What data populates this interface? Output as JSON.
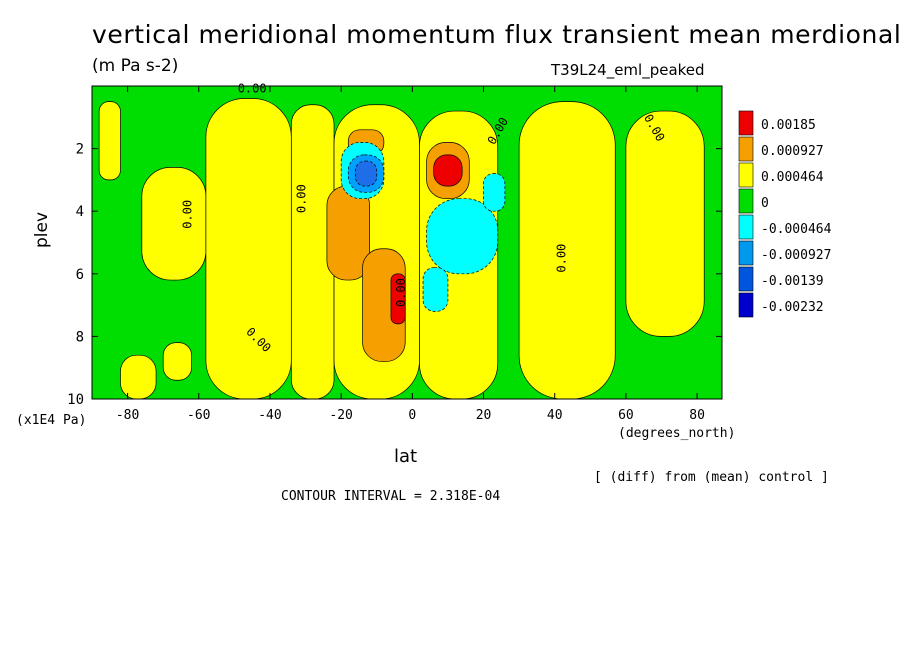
{
  "header": {
    "title": "vertical meridional momentum flux transient mean merdional",
    "units": "(m Pa s-2)",
    "run_label": "T39L24_eml_peaked"
  },
  "footer": {
    "y_unit": "(x1E4 Pa)",
    "x_unit": "(degrees_north)",
    "diff_note": "[ (diff) from (mean) control ]",
    "contour_interval": "CONTOUR INTERVAL = 2.318E-04"
  },
  "chart_data": {
    "type": "heatmap",
    "title": "vertical meridional momentum flux transient mean merdional",
    "xlabel": "lat",
    "ylabel": "plev",
    "xlim": [
      -90,
      87
    ],
    "ylim": [
      0,
      10
    ],
    "y_inverted": true,
    "x_ticks": [
      -80,
      -60,
      -40,
      -20,
      0,
      20,
      40,
      60,
      80
    ],
    "x_tick_labels": [
      "-80",
      "-60",
      "-40",
      "-20",
      "0",
      "20",
      "40",
      "60",
      "80"
    ],
    "y_ticks": [
      2,
      4,
      6,
      8,
      10
    ],
    "y_tick_labels": [
      "2",
      "4",
      "6",
      "8",
      "10"
    ],
    "contour_labels": [
      "0.00",
      "0.00",
      "0.00",
      "0.00",
      "0.00",
      "0.00",
      "0.00",
      "0.00"
    ],
    "legend": {
      "placement": "right",
      "labels": [
        "0.00185",
        "0.000927",
        "0.000464",
        "0",
        "-0.000464",
        "-0.000927",
        "-0.00139",
        "-0.00232"
      ],
      "colors": [
        "#ee0000",
        "#f5a000",
        "#ffff00",
        "#00dd00",
        "#00ffff",
        "#0099ee",
        "#0055dd",
        "#0000cc"
      ]
    },
    "level_colors": {
      "neg3": "#1e6eea",
      "neg2": "#00a0ff",
      "neg1": "#00ffff",
      "zero": "#00dd00",
      "pos1": "#ffff00",
      "pos2": "#f5a000",
      "pos3": "#ee0000"
    },
    "regions": [
      {
        "level": "pos1",
        "lat": [
          -88,
          -82
        ],
        "plev": [
          0.5,
          3.0
        ]
      },
      {
        "level": "pos1",
        "lat": [
          -76,
          -58
        ],
        "plev": [
          2.6,
          6.2
        ]
      },
      {
        "level": "pos1",
        "lat": [
          -82,
          -72
        ],
        "plev": [
          8.6,
          10.0
        ]
      },
      {
        "level": "pos1",
        "lat": [
          -58,
          -34
        ],
        "plev": [
          0.4,
          10.0
        ]
      },
      {
        "level": "pos1",
        "lat": [
          -34,
          -22
        ],
        "plev": [
          0.6,
          10.0
        ]
      },
      {
        "level": "pos1",
        "lat": [
          -22,
          2
        ],
        "plev": [
          0.6,
          10.0
        ]
      },
      {
        "level": "pos1",
        "lat": [
          2,
          24
        ],
        "plev": [
          0.8,
          10.0
        ]
      },
      {
        "level": "pos1",
        "lat": [
          30,
          57
        ],
        "plev": [
          0.5,
          10.0
        ]
      },
      {
        "level": "pos1",
        "lat": [
          60,
          82
        ],
        "plev": [
          0.8,
          8.0
        ]
      },
      {
        "level": "pos1",
        "lat": [
          -70,
          -62
        ],
        "plev": [
          8.2,
          9.4
        ]
      },
      {
        "level": "pos2",
        "lat": [
          -24,
          -12
        ],
        "plev": [
          3.2,
          6.2
        ]
      },
      {
        "level": "pos2",
        "lat": [
          -14,
          -2
        ],
        "plev": [
          5.2,
          8.8
        ]
      },
      {
        "level": "pos2",
        "lat": [
          -18,
          -8
        ],
        "plev": [
          1.4,
          2.2
        ]
      },
      {
        "level": "pos2",
        "lat": [
          4,
          16
        ],
        "plev": [
          1.8,
          3.6
        ]
      },
      {
        "level": "pos3",
        "lat": [
          -6,
          -2
        ],
        "plev": [
          6.0,
          7.6
        ]
      },
      {
        "level": "pos3",
        "lat": [
          6,
          14
        ],
        "plev": [
          2.2,
          3.2
        ]
      },
      {
        "level": "neg1",
        "lat": [
          -20,
          -8
        ],
        "plev": [
          1.8,
          3.6
        ]
      },
      {
        "level": "neg1",
        "lat": [
          4,
          24
        ],
        "plev": [
          3.6,
          6.0
        ]
      },
      {
        "level": "neg1",
        "lat": [
          3,
          10
        ],
        "plev": [
          5.8,
          7.2
        ]
      },
      {
        "level": "neg1",
        "lat": [
          20,
          26
        ],
        "plev": [
          2.8,
          4.0
        ]
      },
      {
        "level": "neg2",
        "lat": [
          -18,
          -8
        ],
        "plev": [
          2.2,
          3.4
        ]
      },
      {
        "level": "neg3",
        "lat": [
          -16,
          -10
        ],
        "plev": [
          2.4,
          3.2
        ]
      }
    ]
  }
}
